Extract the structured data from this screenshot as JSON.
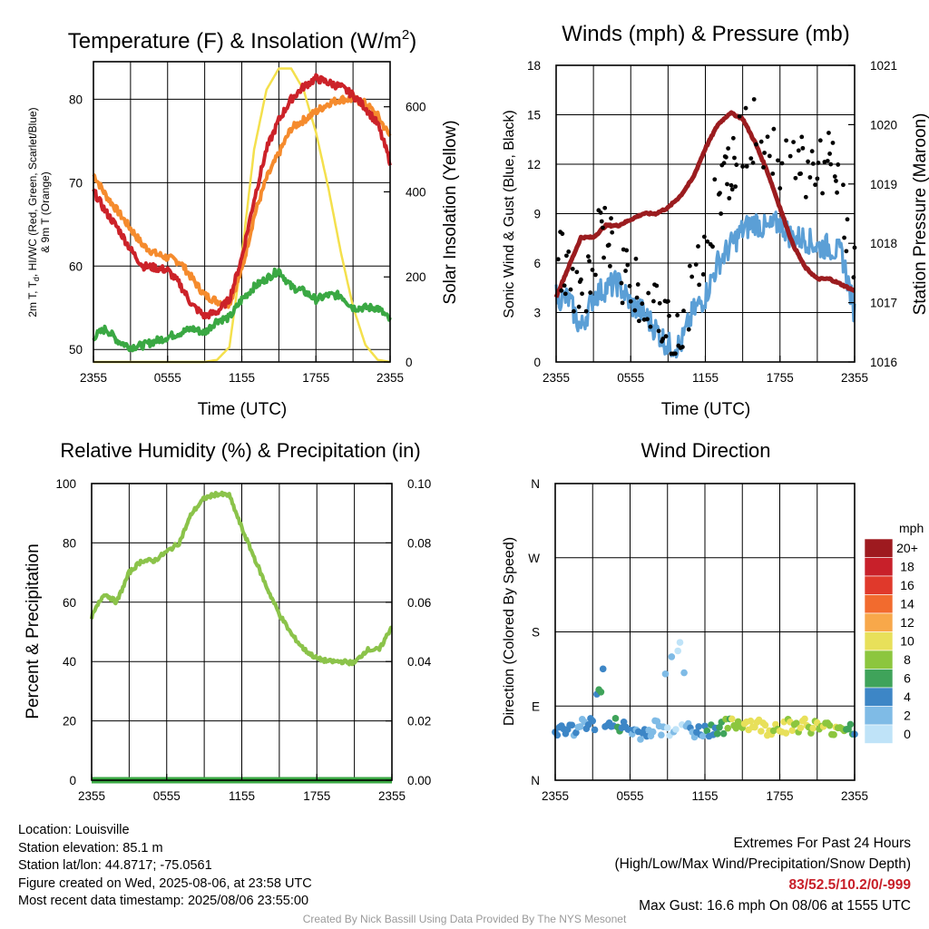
{
  "colors": {
    "temp": "#cc2229",
    "dewpoint": "#3aa843",
    "temp9m": "#f58b2d",
    "solar": "#f4e04d",
    "wind": "#5b9fd6",
    "gust": "#000000",
    "pressure": "#9b1c1f",
    "humidity": "#8bc34a",
    "precip": "#3aa843"
  },
  "x_ticks": [
    "2355",
    "0555",
    "1155",
    "1755",
    "2355"
  ],
  "time_label": "Time (UTC)",
  "panels": {
    "temperature": {
      "title_main": "Temperature (F) & Insolation (W/m",
      "title_sup": "2",
      "title_end": ")",
      "ylabel_line1_a": "2m T, T",
      "ylabel_line1_sub": "d",
      "ylabel_line1_b": ", HI/WC (Red, Green, Scarlet/Blue)",
      "ylabel_line2": "& 9m T (Orange)",
      "ylabel_right": "Solar Insolation (Yellow)",
      "yticks_left": [
        "50",
        "60",
        "70",
        "80"
      ],
      "yticks_right": [
        "0",
        "200",
        "400",
        "600"
      ]
    },
    "winds": {
      "title": "Winds (mph) & Pressure (mb)",
      "ylabel_left": "Sonic Wind & Gust (Blue, Black)",
      "ylabel_right": "Station Pressure (Maroon)",
      "yticks_left": [
        "0",
        "3",
        "6",
        "9",
        "12",
        "15",
        "18"
      ],
      "yticks_right": [
        "1016",
        "1017",
        "1018",
        "1019",
        "1020",
        "1021"
      ]
    },
    "humidity": {
      "title": "Relative Humidity (%) & Precipitation (in)",
      "ylabel_left": "Percent & Precipitation",
      "yticks_left": [
        "0",
        "20",
        "40",
        "60",
        "80",
        "100"
      ],
      "yticks_right": [
        "0.00",
        "0.02",
        "0.04",
        "0.06",
        "0.08",
        "0.10"
      ]
    },
    "direction": {
      "title": "Wind Direction",
      "ylabel_left": "Direction (Colored By Speed)",
      "yticks_left": [
        "N",
        "E",
        "S",
        "W",
        "N"
      ],
      "legend_title": "mph",
      "legend_labels": [
        "20+",
        "18",
        "16",
        "14",
        "12",
        "10",
        "8",
        "6",
        "4",
        "2",
        "0"
      ],
      "legend_colors": [
        "#9e1a1f",
        "#c8202a",
        "#e0392b",
        "#f26b2e",
        "#f8a84a",
        "#e8e05a",
        "#8cc63e",
        "#3fa35a",
        "#3d86c6",
        "#7fbbe6",
        "#bfe3f8"
      ]
    }
  },
  "chart_data": [
    {
      "type": "line",
      "title": "Temperature (F) & Insolation (W/m2)",
      "xlabel": "Time (UTC)",
      "ylabel": "2m T, Td, HI/WC (Red, Green, Scarlet/Blue) & 9m T (Orange)",
      "ylabel_right": "Solar Insolation (Yellow)",
      "x_hours": [
        0,
        1,
        2,
        3,
        4,
        5,
        6,
        7,
        8,
        9,
        10,
        11,
        12,
        13,
        14,
        15,
        16,
        17,
        18,
        19,
        20,
        21,
        22,
        23,
        24
      ],
      "ylim": [
        48.5,
        84.5
      ],
      "ylim_right": [
        0,
        706
      ],
      "series": [
        {
          "values": [
            69,
            66.5,
            64.5,
            62,
            60,
            59.8,
            59.5,
            57.8,
            55.3,
            54,
            54.5,
            56,
            61,
            68,
            74,
            77.5,
            80,
            81.5,
            82.5,
            82,
            81.5,
            80.5,
            79,
            77,
            72.5
          ]
        },
        {
          "values": [
            51.5,
            52.5,
            51,
            50.3,
            50.5,
            51,
            51.5,
            52,
            52.5,
            52,
            53.5,
            53.8,
            56,
            57.5,
            58.5,
            59.5,
            57.5,
            57,
            56,
            56.5,
            56.5,
            55,
            55,
            55,
            53.5
          ]
        },
        {
          "values": [
            71,
            68.5,
            66.5,
            64.5,
            62.5,
            61.5,
            61,
            60.5,
            58.5,
            56.5,
            55.8,
            55.5,
            59.5,
            66,
            70.5,
            73.5,
            76.5,
            77.5,
            78.5,
            79.5,
            80,
            80,
            79.5,
            78,
            75.5
          ]
        },
        {
          "values": [
            0,
            0,
            0,
            0,
            0,
            0,
            0,
            0,
            0,
            0,
            5,
            35,
            250,
            500,
            640,
            690,
            690,
            640,
            540,
            410,
            260,
            130,
            40,
            5,
            0
          ]
        }
      ]
    },
    {
      "type": "line",
      "title": "Winds (mph) & Pressure (mb)",
      "xlabel": "Time (UTC)",
      "ylabel": "Sonic Wind & Gust (Blue, Black)",
      "ylabel_right": "Station Pressure (Maroon)",
      "x_hours": [
        0,
        1,
        2,
        3,
        4,
        5,
        6,
        7,
        8,
        9,
        10,
        11,
        12,
        13,
        14,
        15,
        16,
        17,
        18,
        19,
        20,
        21,
        22,
        23,
        24
      ],
      "ylim": [
        0,
        18
      ],
      "ylim_right": [
        1016,
        1021
      ],
      "series": [
        {
          "values": [
            4,
            3.8,
            2,
            4,
            4.5,
            4.8,
            3.5,
            3,
            2,
            1,
            1,
            3,
            4,
            6,
            7,
            8,
            8.5,
            8,
            8.5,
            7.5,
            7.5,
            7,
            7,
            6.5,
            3
          ]
        },
        {
          "values": [
            6,
            6,
            3.5,
            7,
            8,
            5.5,
            4.5,
            4,
            3,
            2,
            2,
            4.5,
            7,
            10,
            12,
            13.5,
            14,
            13,
            12.5,
            12,
            12,
            12,
            12,
            10,
            5
          ]
        },
        {
          "values": [
            1017.1,
            1017.6,
            1018.1,
            1018.1,
            1018.3,
            1018.3,
            1018.4,
            1018.5,
            1018.5,
            1018.6,
            1018.8,
            1019.1,
            1019.6,
            1020.0,
            1020.2,
            1020.1,
            1019.7,
            1019.2,
            1018.6,
            1018.0,
            1017.6,
            1017.4,
            1017.4,
            1017.3,
            1017.2
          ]
        }
      ]
    },
    {
      "type": "line",
      "title": "Relative Humidity (%) & Precipitation (in)",
      "xlabel": "",
      "ylabel": "Percent & Precipitation",
      "x_hours": [
        0,
        1,
        2,
        3,
        4,
        5,
        6,
        7,
        8,
        9,
        10,
        11,
        12,
        13,
        14,
        15,
        16,
        17,
        18,
        19,
        20,
        21,
        22,
        23,
        24
      ],
      "ylim": [
        0,
        100
      ],
      "ylim_right": [
        0,
        0.1
      ],
      "series": [
        {
          "values": [
            55,
            63,
            60,
            70,
            74,
            74,
            77,
            80,
            90,
            95,
            96.5,
            96,
            85,
            75,
            65,
            56,
            49,
            44,
            41,
            40,
            40,
            39.5,
            44,
            44,
            52
          ]
        },
        {
          "values": [
            0,
            0,
            0,
            0,
            0,
            0,
            0,
            0,
            0,
            0,
            0,
            0,
            0,
            0,
            0,
            0,
            0,
            0,
            0,
            0,
            0,
            0,
            0,
            0,
            0
          ]
        }
      ]
    },
    {
      "type": "scatter",
      "title": "Wind Direction",
      "xlabel": "",
      "ylabel": "Direction (Colored By Speed)",
      "x_hours": [
        0,
        1,
        2,
        3,
        4,
        5,
        6,
        7,
        8,
        9,
        10,
        11,
        12,
        13,
        14,
        15,
        16,
        17,
        18,
        19,
        20,
        21,
        22,
        23,
        24
      ],
      "ylim": [
        0,
        360
      ],
      "series": [
        {
          "values": [
            62,
            60,
            65,
            68,
            62,
            68,
            60,
            57,
            65,
            60,
            72,
            58,
            60,
            64,
            66,
            70,
            68,
            62,
            66,
            66,
            68,
            64,
            62,
            66,
            62
          ]
        }
      ]
    }
  ],
  "info_left": {
    "location": "Location: Louisville",
    "elevation": "Station elevation: 85.1 m",
    "latlon": "Station lat/lon: 44.8717; -75.0561",
    "created": "Figure created on Wed, 2025-08-06, at 23:58 UTC",
    "recent": "Most recent data timestamp: 2025/08/06 23:55:00"
  },
  "info_right": {
    "title": "Extremes For Past 24 Hours",
    "legend": "(High/Low/Max Wind/Precipitation/Snow Depth)",
    "values": "83/52.5/10.2/0/-999",
    "gust": "Max Gust: 16.6 mph On 08/06 at 1555 UTC"
  },
  "credit": "Created By Nick Bassill Using Data Provided By The NYS Mesonet"
}
